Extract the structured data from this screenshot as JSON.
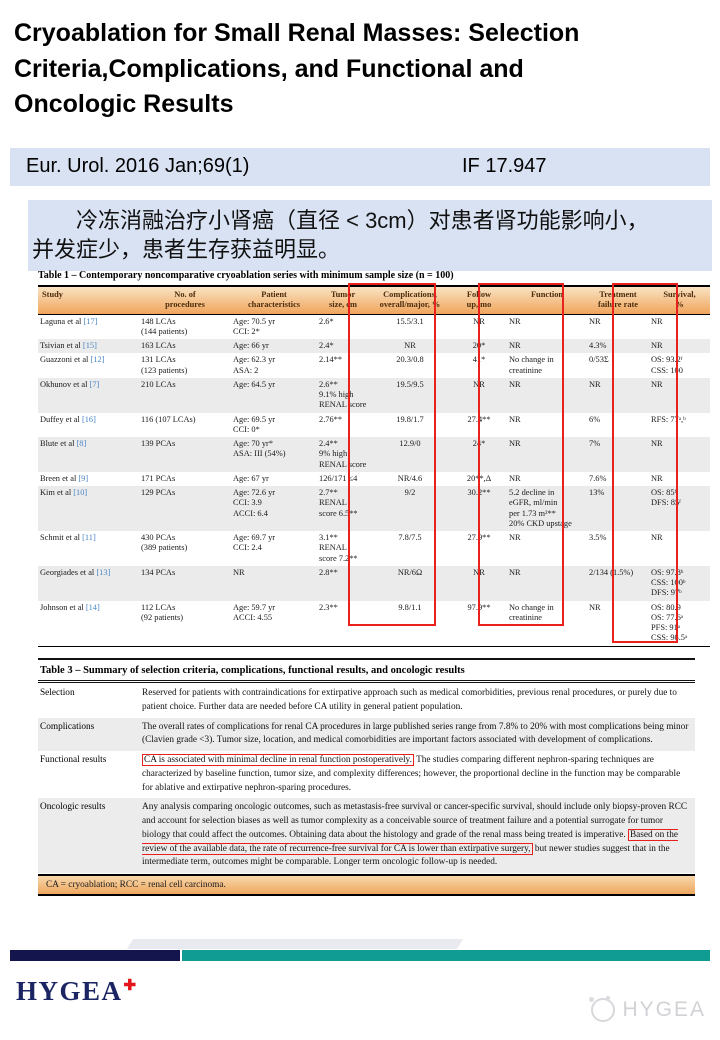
{
  "slide": {
    "title": "Cryoablation for Small Renal Masses: Selection\nCriteria,Complications, and Functional and\nOncologic Results",
    "journal": "Eur. Urol. 2016 Jan;69(1)",
    "impact_factor": "IF 17.947",
    "summary_zh": "冷冻消融治疗小肾癌（直径 < 3cm）对患者肾功能影响小，\n并发症少，患者生存获益明显。"
  },
  "colors": {
    "highlight_red": "#e8211d",
    "band_lavender": "#d9e2f3",
    "table_header_orange_top": "#fae3c2",
    "table_header_orange_bottom": "#efa45c",
    "row_shade_gray": "#ebebeb",
    "citation_blue": "#4a86c6",
    "footer_navy": "#15154e",
    "footer_teal": "#109c92",
    "logo_navy": "#1c2563",
    "logo_cross_red": "#e4161c"
  },
  "table1": {
    "title": "Table 1 – Contemporary noncomparative cryoablation series with minimum sample size (n = 100)",
    "columns": [
      "Study",
      "No. of\nprocedures",
      "Patient\ncharacteristics",
      "Tumor\nsize, cm",
      "Complications,\noverall/major, %",
      "Follow\nup, mo",
      "Function",
      "Treatment\nfailure rate",
      "Survival,\n%"
    ],
    "rows": [
      {
        "study": "Laguna et al",
        "ref": "[17]",
        "cells": [
          "148 LCAs\n(144 patients)",
          "Age: 70.5 yr\nCCI: 2*",
          "2.6*",
          "15.5/3.1",
          "NR",
          "NR",
          "NR",
          "NR"
        ]
      },
      {
        "study": "Tsivian et al",
        "ref": "[15]",
        "cells": [
          "163 LCAs",
          "Age: 66 yr",
          "2.4*",
          "NR",
          "20*",
          "NR",
          "4.3%",
          "NR"
        ]
      },
      {
        "study": "Guazzoni et al",
        "ref": "[12]",
        "cells": [
          "131 LCAs\n(123 patients)",
          "Age: 62.3 yr\nASA: 2",
          "2.14**",
          "20.3/0.8",
          "41*",
          "No change in\ncreatinine",
          "0/53Σ",
          "OS: 93.2ᶠ\nCSS: 100"
        ]
      },
      {
        "study": "Okhunov et al",
        "ref": "[7]",
        "cells": [
          "210 LCAs",
          "Age: 64.5 yr",
          "2.6**\n9.1% high\nRENAL score",
          "19.5/9.5",
          "NR",
          "NR",
          "NR",
          "NR"
        ]
      },
      {
        "study": "Duffey et al",
        "ref": "[16]",
        "cells": [
          "116 (107 LCAs)",
          "Age: 69.5 yr\nCCI: 0*",
          "2.76**",
          "19.8/1.7",
          "27.4**",
          "NR",
          "6%",
          "RFS: 77ᵃ,ᵇ"
        ]
      },
      {
        "study": "Blute et al",
        "ref": "[8]",
        "cells": [
          "139 PCAs",
          "Age: 70 yr*\nASA: III (54%)",
          "2.4**\n9% high\nRENAL score",
          "12.9/0",
          "24*",
          "NR",
          "7%",
          "NR"
        ]
      },
      {
        "study": "Breen et al",
        "ref": "[9]",
        "cells": [
          "171 PCAs",
          "Age: 67 yr",
          "126/171 ≤4",
          "NR/4.6",
          "20**,Δ",
          "NR",
          "7.6%",
          "NR"
        ]
      },
      {
        "study": "Kim et al",
        "ref": "[10]",
        "cells": [
          "129 PCAs",
          "Age: 72.6 yr\nCCI: 3.9\nACCI: 6.4",
          "2.7**\nRENAL\nscore 6.5**",
          "9/2",
          "30.2**",
          "5.2 decline in\neGFR, ml/min\nper 1.73 m²**\n20% CKD upstage",
          "13%",
          "OS: 85ᶠ\nDFS: 85ᶠ"
        ]
      },
      {
        "study": "Schmit et al",
        "ref": "[11]",
        "cells": [
          "430 PCAs\n(389 patients)",
          "Age: 69.7 yr\nCCI: 2.4",
          "3.1**\nRENAL\nscore 7.2**",
          "7.8/7.5",
          "27.9**",
          "NR",
          "3.5%",
          "NR"
        ]
      },
      {
        "study": "Georgiades et al",
        "ref": "[13]",
        "cells": [
          "134 PCAs",
          "NR",
          "2.8**",
          "NR/6Ω",
          "NR",
          "NR",
          "2/134 (1.5%)",
          "OS: 97.8ᵇ\nCSS: 100ᵇ\nDFS: 97ᵇ"
        ]
      },
      {
        "study": "Johnson et al",
        "ref": "[14]",
        "cells": [
          "112 LCAs\n(92 patients)",
          "Age: 59.7 yr\nACCI: 4.55",
          "2.3**",
          "9.8/1.1",
          "97.9**",
          "No change in\ncreatinine",
          "NR",
          "OS: 80.9\nOS: 77.6ᵃ\nPFS: 91ᵃ\nCSS: 98.5ᵃ"
        ]
      }
    ]
  },
  "table3": {
    "title": "Table 3 – Summary of selection criteria, complications, functional results, and oncologic results",
    "rows": [
      {
        "label": "Selection",
        "segments": [
          {
            "text": "Reserved for patients with contraindications for extirpative approach such as medical comorbidities, previous renal procedures, or purely due to patient choice. Further data are needed before CA utility in general patient population.",
            "boxed": false
          }
        ]
      },
      {
        "label": "Complications",
        "segments": [
          {
            "text": "The overall rates of complications for renal CA procedures in large published series range from 7.8% to 20% with most complications being minor (Clavien grade <3). Tumor size, location, and medical comorbidities are important factors associated with development of complications.",
            "boxed": false
          }
        ]
      },
      {
        "label": "Functional results",
        "segments": [
          {
            "text": "CA is associated with minimal decline in renal function postoperatively.",
            "boxed": true
          },
          {
            "text": " The studies comparing different nephron-sparing techniques are characterized by baseline function, tumor size, and complexity differences; however, the proportional decline in the function may be comparable for ablative and extirpative nephron-sparing procedures.",
            "boxed": false
          }
        ]
      },
      {
        "label": "Oncologic results",
        "segments": [
          {
            "text": "Any analysis comparing oncologic outcomes, such as metastasis-free survival or cancer-specific survival, should include only biopsy-proven RCC and account for selection biases as well as tumor complexity as a conceivable source of treatment failure and a potential surrogate for tumor biology that could affect the outcomes. Obtaining data about the histology and grade of the renal mass being treated is imperative. ",
            "boxed": false
          },
          {
            "text": "Based on the review of the available data, the rate of recurrence-free survival for CA is lower than extirpative surgery,",
            "boxed": true
          },
          {
            "text": " but newer studies suggest that in the intermediate term, outcomes might be comparable. Longer term oncologic follow-up is needed.",
            "boxed": false
          }
        ]
      }
    ],
    "footnote": "CA = cryoablation; RCC = renal cell carcinoma."
  },
  "footer": {
    "logo_text": "HYGEA",
    "logo_cross": "✚",
    "watermark_text": "HYGEA"
  }
}
